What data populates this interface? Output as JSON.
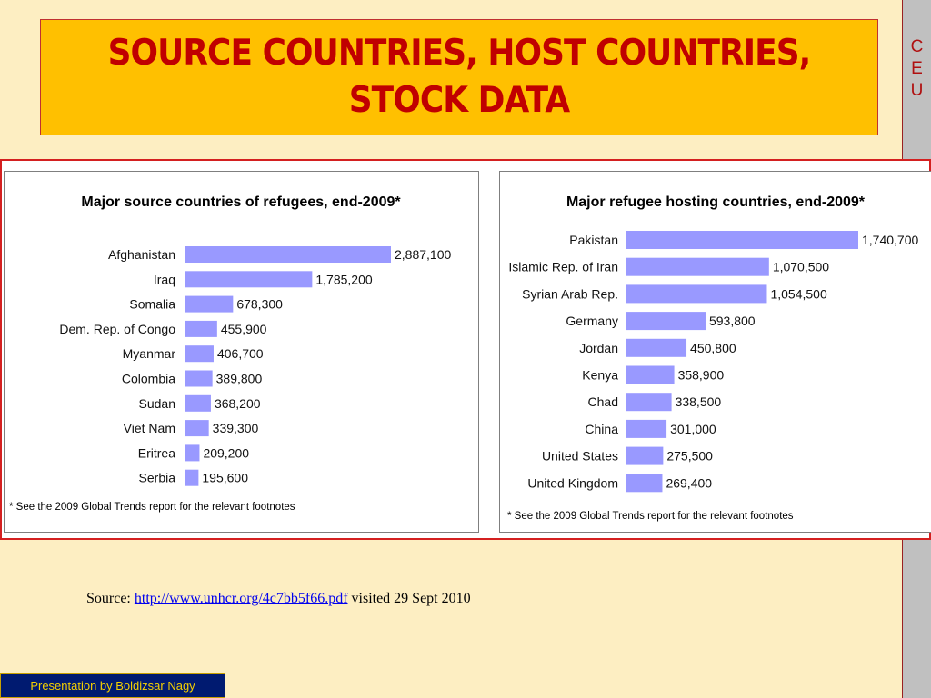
{
  "slide": {
    "title": "SOURCE COUNTRIES, HOST COUNTRIES, STOCK DATA",
    "sidebar_letters": [
      "C",
      "E",
      "U"
    ],
    "source_prefix": "Source: ",
    "source_link": "http://www.unhcr.org/4c7bb5f66.pdf",
    "source_suffix": " visited 29 Sept 2010",
    "footer": "Presentation by Boldizsar Nagy"
  },
  "colors": {
    "background": "#fdeec2",
    "title_box": "#ffc000",
    "title_text": "#c00000",
    "bar": "#9999ff",
    "frame_border": "#d42020",
    "footer_bg": "#001a70",
    "footer_text": "#f5d000"
  },
  "chart_data": [
    {
      "type": "bar",
      "orientation": "horizontal",
      "title": "Major source countries of refugees, end-2009*",
      "categories": [
        "Afghanistan",
        "Iraq",
        "Somalia",
        "Dem. Rep. of Congo",
        "Myanmar",
        "Colombia",
        "Sudan",
        "Viet Nam",
        "Eritrea",
        "Serbia"
      ],
      "values": [
        2887100,
        1785200,
        678300,
        455900,
        406700,
        389800,
        368200,
        339300,
        209200,
        195600
      ],
      "value_labels": [
        "2,887,100",
        "1,785,200",
        "678,300",
        "455,900",
        "406,700",
        "389,800",
        "368,200",
        "339,300",
        "209,200",
        "195,600"
      ],
      "footnote": "* See the 2009 Global Trends report for the relevant footnotes",
      "grid": false,
      "legend": "none"
    },
    {
      "type": "bar",
      "orientation": "horizontal",
      "title": "Major refugee hosting countries, end-2009*",
      "categories": [
        "Pakistan",
        "Islamic Rep. of Iran",
        "Syrian Arab Rep.",
        "Germany",
        "Jordan",
        "Kenya",
        "Chad",
        "China",
        "United States",
        "United Kingdom"
      ],
      "values": [
        1740700,
        1070500,
        1054500,
        593800,
        450800,
        358900,
        338500,
        301000,
        275500,
        269400
      ],
      "value_labels": [
        "1,740,700",
        "1,070,500",
        "1,054,500",
        "593,800",
        "450,800",
        "358,900",
        "338,500",
        "301,000",
        "275,500",
        "269,400"
      ],
      "footnote": "* See the 2009 Global Trends report for the relevant footnotes",
      "grid": false,
      "legend": "none"
    }
  ]
}
